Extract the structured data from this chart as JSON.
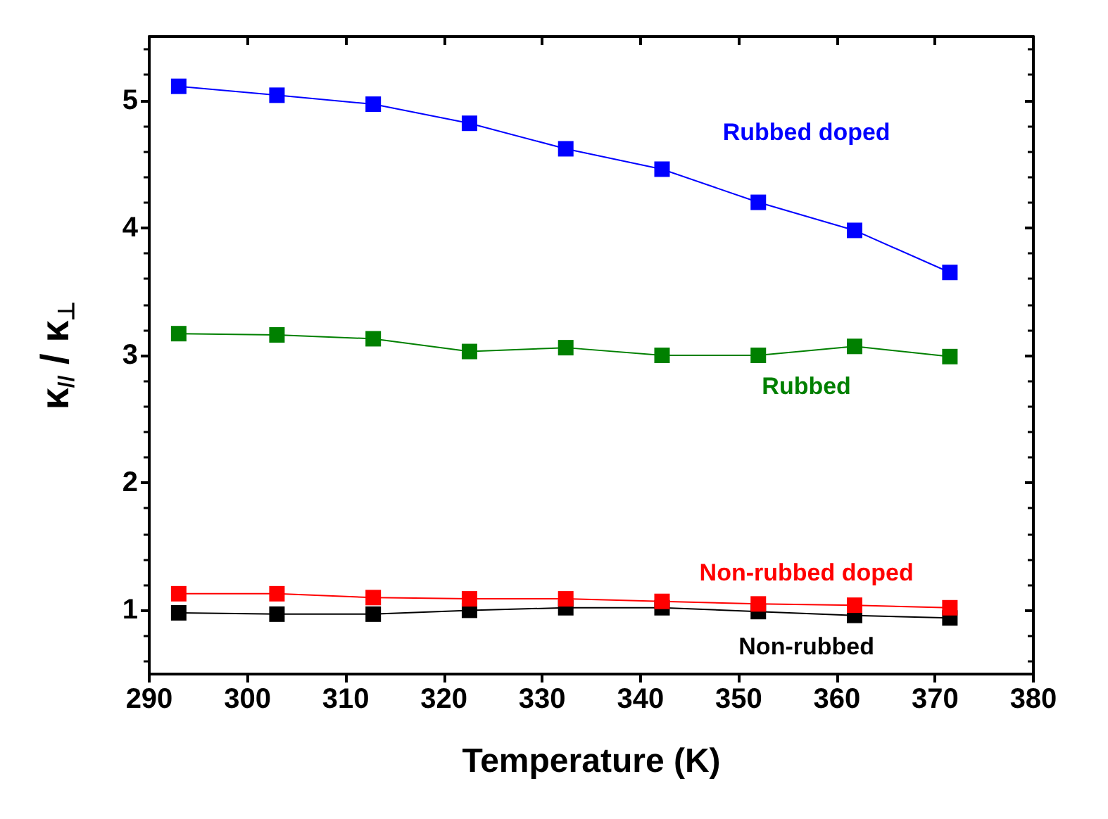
{
  "chart_data": {
    "type": "line",
    "xlabel": "Temperature (K)",
    "ylabel": "κ$_{//}$ / κ$_{⊥}$",
    "x": [
      293,
      303,
      312.8,
      322.6,
      332.4,
      342.2,
      352,
      361.8,
      371.5
    ],
    "series": [
      {
        "name": "Rubbed doped",
        "color": "#0000ff",
        "values": [
          5.11,
          5.04,
          4.97,
          4.82,
          4.62,
          4.46,
          4.2,
          3.98,
          3.65
        ]
      },
      {
        "name": "Rubbed",
        "color": "#008000",
        "values": [
          3.17,
          3.16,
          3.13,
          3.03,
          3.06,
          3.0,
          3.0,
          3.07,
          2.99
        ]
      },
      {
        "name": "Non-rubbed doped",
        "color": "#ff0000",
        "values": [
          1.13,
          1.13,
          1.1,
          1.09,
          1.09,
          1.07,
          1.05,
          1.04,
          1.02
        ]
      },
      {
        "name": "Non-rubbed",
        "color": "#000000",
        "values": [
          0.98,
          0.97,
          0.97,
          1.0,
          1.02,
          1.02,
          0.99,
          0.96,
          0.94
        ]
      }
    ],
    "xlim": [
      290,
      380
    ],
    "xticks": [
      290,
      300,
      310,
      320,
      330,
      340,
      350,
      360,
      370,
      380
    ],
    "ylim": [
      0.5,
      5.5
    ],
    "yticks": [
      1,
      2,
      3,
      4,
      5
    ],
    "grid": false,
    "legend": false,
    "marker": "square",
    "line_style": "solid"
  }
}
